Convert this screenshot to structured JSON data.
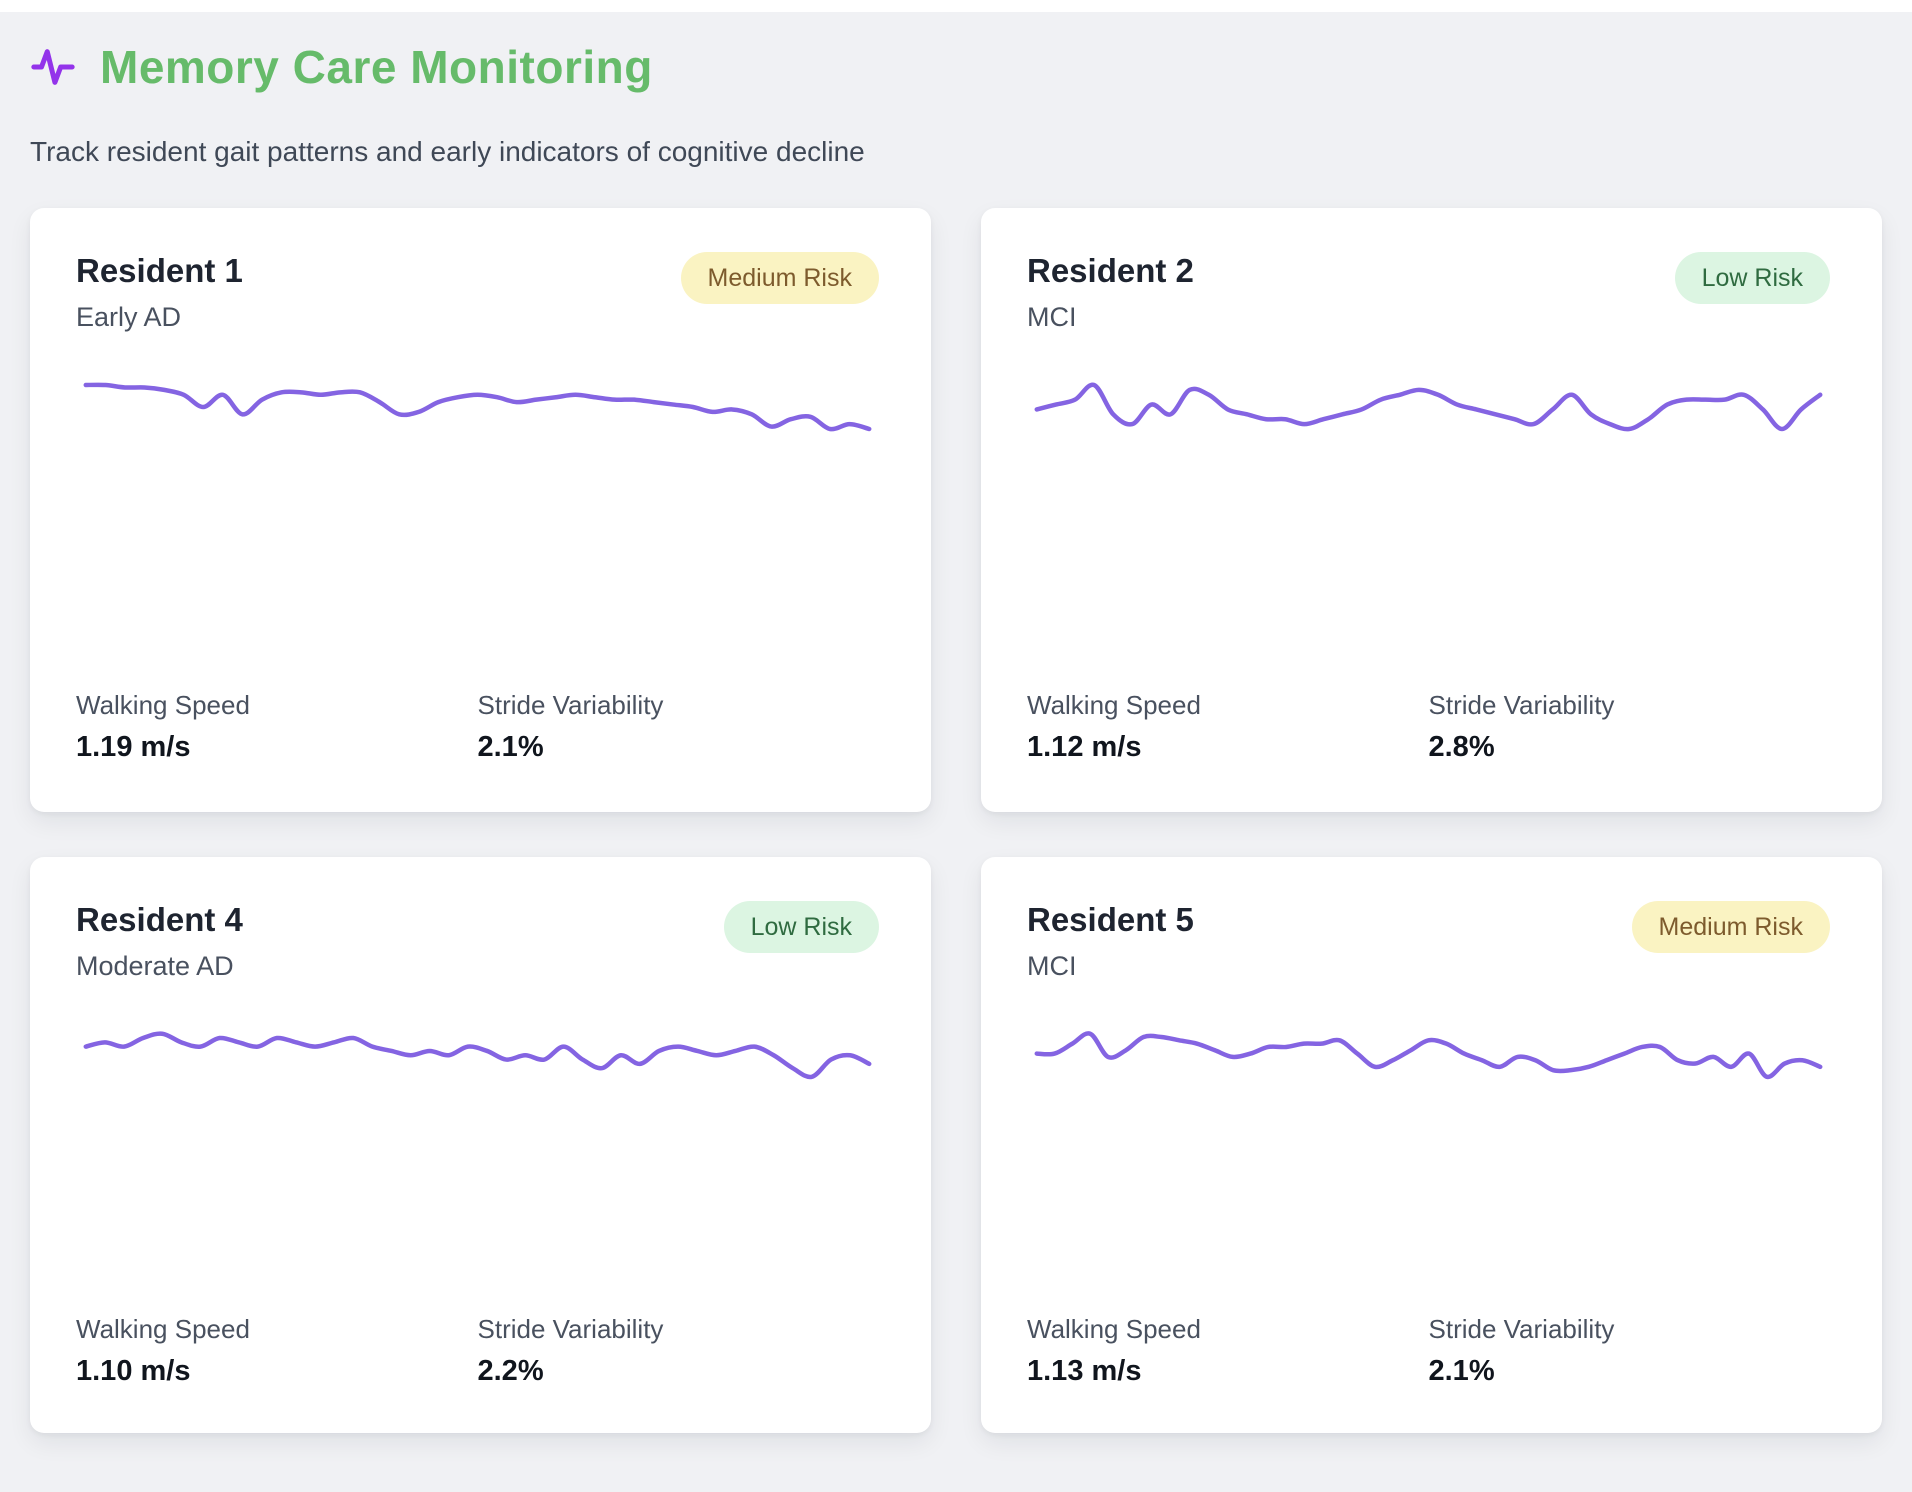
{
  "header": {
    "title": "Memory Care Monitoring",
    "subtitle": "Track resident gait patterns and early indicators of cognitive decline",
    "icon": "activity-pulse-icon"
  },
  "colors": {
    "title_green": "#66bb6a",
    "icon_purple": "#9333ea",
    "sparkline_purple": "#8464e2",
    "risk_medium_bg": "#faf3c2",
    "risk_medium_text": "#7d5b2d",
    "risk_low_bg": "#dcf5e2",
    "risk_low_text": "#2f6b40",
    "page_background": "#f0f1f4",
    "card_background": "#ffffff"
  },
  "metric_labels": {
    "walking_speed": "Walking Speed",
    "stride_variability": "Stride Variability"
  },
  "residents": [
    {
      "name": "Resident 1",
      "condition": "Early AD",
      "risk_label": "Medium Risk",
      "risk_level": "medium",
      "walking_speed": "1.19 m/s",
      "stride_variability": "2.1%"
    },
    {
      "name": "Resident 2",
      "condition": "MCI",
      "risk_label": "Low Risk",
      "risk_level": "low",
      "walking_speed": "1.12 m/s",
      "stride_variability": "2.8%"
    },
    {
      "name": "Resident 4",
      "condition": "Moderate AD",
      "risk_label": "Low Risk",
      "risk_level": "low",
      "walking_speed": "1.10 m/s",
      "stride_variability": "2.2%"
    },
    {
      "name": "Resident 5",
      "condition": "MCI",
      "risk_label": "Medium Risk",
      "risk_level": "medium",
      "walking_speed": "1.13 m/s",
      "stride_variability": "2.1%"
    }
  ],
  "chart_data": [
    {
      "type": "line",
      "title": "Resident 1 gait trend sparkline",
      "xlabel": "",
      "ylabel": "",
      "axes_visible": false,
      "grid": false,
      "legend": false,
      "values": [
        97,
        97,
        96,
        96,
        95,
        93,
        88,
        93,
        85,
        91,
        94,
        94,
        93,
        94,
        94,
        90,
        85,
        86,
        90,
        92,
        93,
        92,
        90,
        91,
        92,
        93,
        92,
        91,
        91,
        90,
        89,
        88,
        86,
        87,
        85,
        80,
        83,
        84,
        79,
        81,
        79
      ]
    },
    {
      "type": "line",
      "title": "Resident 2 gait trend sparkline",
      "xlabel": "",
      "ylabel": "",
      "axes_visible": false,
      "grid": false,
      "legend": false,
      "values": [
        88,
        89,
        90,
        93,
        87,
        85,
        89,
        87,
        92,
        91,
        88,
        87,
        86,
        86,
        85,
        86,
        87,
        88,
        90,
        91,
        92,
        91,
        89,
        88,
        87,
        86,
        85,
        88,
        91,
        87,
        85,
        84,
        86,
        89,
        90,
        90,
        90,
        91,
        88,
        84,
        88,
        91
      ]
    },
    {
      "type": "line",
      "title": "Resident 4 gait trend sparkline",
      "xlabel": "",
      "ylabel": "",
      "axes_visible": false,
      "grid": false,
      "legend": false,
      "values": [
        90,
        91,
        90,
        92,
        93,
        91,
        90,
        92,
        91,
        90,
        92,
        91,
        90,
        91,
        92,
        90,
        89,
        88,
        89,
        88,
        90,
        89,
        87,
        88,
        87,
        90,
        87,
        85,
        88,
        86,
        89,
        90,
        89,
        88,
        89,
        90,
        88,
        85,
        83,
        87,
        88,
        86
      ]
    },
    {
      "type": "line",
      "title": "Resident 5 gait trend sparkline",
      "xlabel": "",
      "ylabel": "",
      "axes_visible": false,
      "grid": false,
      "legend": false,
      "values": [
        88,
        88,
        91,
        94,
        87,
        89,
        93,
        93,
        92,
        91,
        89,
        87,
        88,
        90,
        90,
        91,
        91,
        92,
        88,
        84,
        86,
        89,
        92,
        91,
        88,
        86,
        84,
        87,
        86,
        83,
        83,
        84,
        86,
        88,
        90,
        90,
        86,
        85,
        87,
        84,
        88,
        81,
        85,
        86,
        84
      ]
    }
  ]
}
